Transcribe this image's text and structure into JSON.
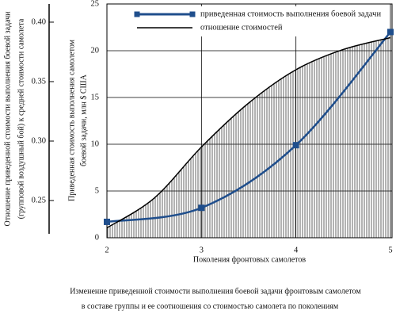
{
  "chart_data": {
    "type": "line",
    "xlabel": "Поколения фронтовых самолетов",
    "ylabel": [
      "Приведенная стоимость выполнения самолетом",
      "боевой задачи,  млн $ США"
    ],
    "y2label": [
      "Отношение приведенной стоимости выполнения боевой задачи",
      "(групповой воздушный бой) к средней стоимости самолета"
    ],
    "caption": [
      "Изменение приведенной стоимости выполнения боевой задачи фронтовым самолетом",
      "в составе группы и ее соотношения со стоимостью самолета по поколениям"
    ],
    "xlim": [
      2,
      5
    ],
    "xticks": [
      2,
      3,
      4,
      5
    ],
    "ylim": [
      0,
      25
    ],
    "yticks": [
      0,
      5,
      10,
      15,
      20,
      25
    ],
    "y2lim": [
      0.2187,
      0.4153
    ],
    "y2ticks": [
      0.25,
      {
        "value": 0.3,
        "label": "0.30"
      },
      0.35,
      {
        "value": 0.4,
        "label": "0.40"
      }
    ],
    "grid": true,
    "legend": "upper left",
    "series": [
      {
        "name": "приведенная стоимость выполнения боевой задачи",
        "color": "#1f4e8c",
        "markers": true,
        "x": [
          2,
          3,
          4,
          5
        ],
        "values": [
          1.7,
          3.2,
          9.9,
          22
        ]
      },
      {
        "name": "отношение стоимостей",
        "color": "#000000",
        "axis": "y2",
        "hatched": true,
        "x": [
          2,
          2.5,
          3,
          3.5,
          4,
          4.5,
          5
        ],
        "values": [
          0.227,
          0.252,
          0.295,
          0.332,
          0.36,
          0.377,
          0.387
        ]
      }
    ]
  }
}
